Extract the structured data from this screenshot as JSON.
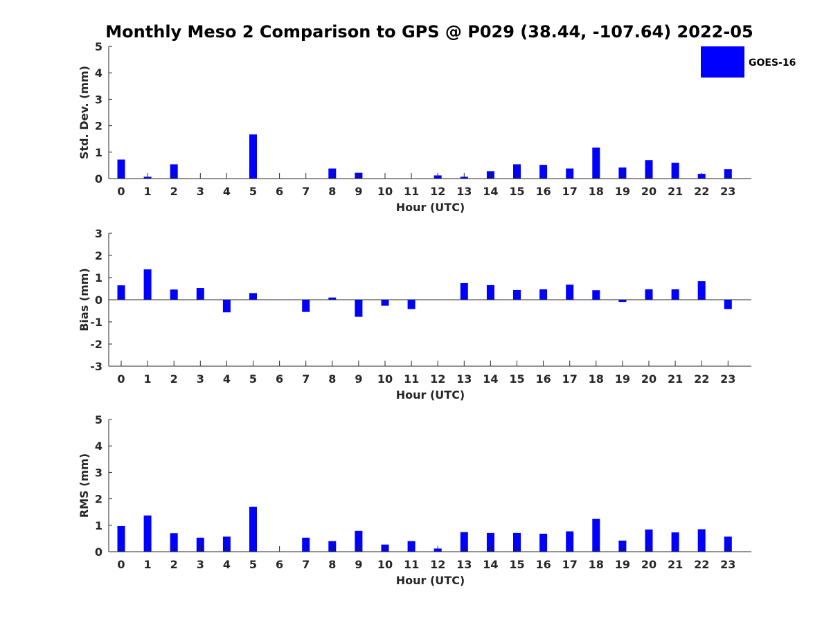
{
  "title": "Monthly Meso 2 Comparison to GPS @ P029 (38.44, -107.64) 2022-05",
  "legend": {
    "label": "GOES-16",
    "color": "#0000ff",
    "placement": "top-right"
  },
  "chart_data": [
    {
      "type": "bar",
      "xlabel": "Hour (UTC)",
      "ylabel": "Std. Dev. (mm)",
      "ylim": [
        0,
        5
      ],
      "yticks": [
        "0",
        "1",
        "2",
        "3",
        "4",
        "5"
      ],
      "categories": [
        "0",
        "1",
        "2",
        "3",
        "4",
        "5",
        "6",
        "7",
        "8",
        "9",
        "10",
        "11",
        "12",
        "13",
        "14",
        "15",
        "16",
        "17",
        "18",
        "19",
        "20",
        "21",
        "22",
        "23"
      ],
      "series": [
        {
          "name": "GOES-16",
          "color": "#0000ff",
          "values": [
            0.72,
            0.07,
            0.54,
            0,
            0,
            1.67,
            0,
            0,
            0.38,
            0.22,
            0,
            0,
            0.12,
            0.07,
            0.28,
            0.54,
            0.52,
            0.38,
            1.17,
            0.42,
            0.7,
            0.6,
            0.18,
            0.36
          ]
        }
      ]
    },
    {
      "type": "bar",
      "xlabel": "Hour (UTC)",
      "ylabel": "Bias (mm)",
      "ylim": [
        -3,
        3
      ],
      "yticks": [
        "-3",
        "-2",
        "-1",
        "0",
        "1",
        "2",
        "3"
      ],
      "categories": [
        "0",
        "1",
        "2",
        "3",
        "4",
        "5",
        "6",
        "7",
        "8",
        "9",
        "10",
        "11",
        "12",
        "13",
        "14",
        "15",
        "16",
        "17",
        "18",
        "19",
        "20",
        "21",
        "22",
        "23"
      ],
      "series": [
        {
          "name": "GOES-16",
          "color": "#0000ff",
          "values": [
            0.65,
            1.37,
            0.46,
            0.53,
            -0.57,
            0.3,
            0,
            -0.55,
            0.1,
            -0.77,
            -0.27,
            -0.42,
            0,
            0.75,
            0.66,
            0.44,
            0.47,
            0.68,
            0.43,
            -0.1,
            0.47,
            0.47,
            0.84,
            -0.42
          ]
        }
      ]
    },
    {
      "type": "bar",
      "xlabel": "Hour (UTC)",
      "ylabel": "RMS (mm)",
      "ylim": [
        0,
        5
      ],
      "yticks": [
        "0",
        "1",
        "2",
        "3",
        "4",
        "5"
      ],
      "categories": [
        "0",
        "1",
        "2",
        "3",
        "4",
        "5",
        "6",
        "7",
        "8",
        "9",
        "10",
        "11",
        "12",
        "13",
        "14",
        "15",
        "16",
        "17",
        "18",
        "19",
        "20",
        "21",
        "22",
        "23"
      ],
      "series": [
        {
          "name": "GOES-16",
          "color": "#0000ff",
          "values": [
            0.97,
            1.37,
            0.7,
            0.53,
            0.57,
            1.7,
            0,
            0.53,
            0.4,
            0.79,
            0.27,
            0.4,
            0.12,
            0.74,
            0.71,
            0.71,
            0.68,
            0.77,
            1.24,
            0.42,
            0.84,
            0.73,
            0.85,
            0.57
          ]
        }
      ]
    }
  ]
}
